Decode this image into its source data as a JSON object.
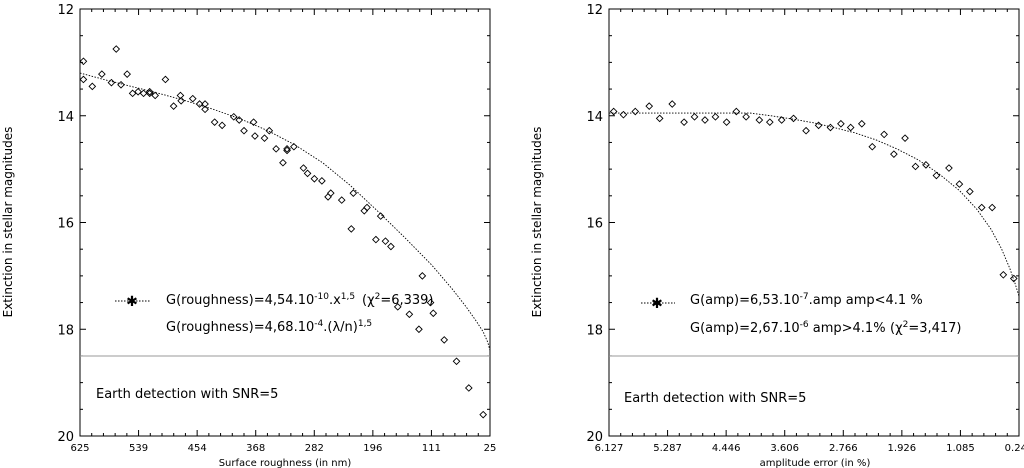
{
  "chart_data": [
    {
      "type": "scatter",
      "title": "",
      "xlabel": "Surface roughness (in nm)",
      "ylabel": "Extinction in stellar magnitudes",
      "xlim": [
        625,
        25
      ],
      "ylim": [
        12,
        20
      ],
      "y_inverted": true,
      "x_reversed": true,
      "x_ticks": [
        "625",
        "539",
        "454",
        "368",
        "282",
        "196",
        "111",
        "25"
      ],
      "y_ticks": [
        "12",
        "14",
        "16",
        "18",
        "20"
      ],
      "reference_line": {
        "y": 18.5,
        "label": "Earth detection with SNR=5"
      },
      "legend": {
        "fit_label": "G(roughness)=4,54.10",
        "fit_exp": "-10",
        "fit_tail": ".x",
        "fit_pow": "1,5",
        "chi_pre": "(χ",
        "chi_sup": "2",
        "chi_post": "=6,339)",
        "second_pre": "G(roughness)=4,68.10",
        "second_exp": "-4",
        "second_tail": ".(λ/n)",
        "second_pow": "1,5"
      },
      "series": [
        {
          "x": [
            620,
            620,
            607,
            593,
            579,
            572,
            565,
            556,
            548,
            540,
            532,
            523,
            523,
            515,
            500,
            488,
            478,
            477,
            460,
            450,
            442,
            442,
            428,
            417,
            400,
            392,
            385,
            371,
            369,
            355,
            348,
            338,
            328,
            322,
            322,
            312,
            298,
            292,
            282,
            271,
            262,
            258,
            242,
            228,
            225,
            209,
            205,
            192,
            185,
            178,
            170,
            160,
            143,
            129,
            124,
            112,
            108,
            92,
            74,
            56,
            35
          ],
          "y": [
            13.32,
            12.98,
            13.45,
            13.22,
            13.38,
            12.75,
            13.42,
            13.22,
            13.58,
            13.55,
            13.58,
            13.55,
            13.58,
            13.62,
            13.32,
            13.82,
            13.62,
            13.72,
            13.68,
            13.78,
            13.88,
            13.78,
            14.12,
            14.18,
            14.02,
            14.08,
            14.28,
            14.12,
            14.38,
            14.42,
            14.28,
            14.62,
            14.88,
            14.62,
            14.65,
            14.58,
            14.98,
            15.08,
            15.18,
            15.22,
            15.52,
            15.45,
            15.58,
            16.12,
            15.45,
            15.78,
            15.72,
            16.32,
            15.88,
            16.35,
            16.45,
            17.58,
            17.72,
            18.0,
            17.0,
            17.5,
            17.7,
            18.2,
            18.6,
            19.1,
            19.6
          ],
          "y_note": "readings"
        }
      ],
      "fit_curve": {
        "x": [
          625,
          590,
          550,
          510,
          470,
          430,
          390,
          350,
          310,
          270,
          230,
          190,
          150,
          110,
          80,
          60,
          45,
          35,
          28,
          25
        ],
        "y": [
          13.2,
          13.32,
          13.45,
          13.58,
          13.72,
          13.88,
          14.06,
          14.28,
          14.55,
          14.88,
          15.3,
          15.78,
          16.28,
          16.8,
          17.25,
          17.58,
          17.85,
          18.05,
          18.25,
          18.4
        ]
      }
    },
    {
      "type": "scatter",
      "title": "",
      "xlabel": "amplitude error (in %)",
      "ylabel": "Extinction in stellar magnitudes",
      "xlim": [
        6.127,
        0.245
      ],
      "ylim": [
        12,
        20
      ],
      "y_inverted": true,
      "x_reversed": true,
      "x_ticks": [
        "6.127",
        "5.287",
        "4.446",
        "3.606",
        "2.766",
        "1.926",
        "1.085",
        "0.245"
      ],
      "y_ticks": [
        "12",
        "14",
        "16",
        "18",
        "20"
      ],
      "reference_line": {
        "y": 18.5,
        "label": "Earth detection with SNR=5"
      },
      "legend": {
        "fit_label": "G(amp)=6,53.10",
        "fit_exp": "-7",
        "fit_tail": ".amp amp<4.1 %",
        "second_pre": "G(amp)=2,67.10",
        "second_exp": "-6",
        "second_tail": " amp>4.1%",
        "chi_pre": "(χ",
        "chi_sup": "2",
        "chi_post": "=3,417)"
      },
      "series": [
        {
          "x": [
            6.06,
            5.92,
            5.75,
            5.55,
            5.4,
            5.22,
            5.05,
            4.9,
            4.75,
            4.6,
            4.44,
            4.3,
            4.16,
            3.97,
            3.82,
            3.65,
            3.48,
            3.3,
            3.12,
            2.95,
            2.8,
            2.66,
            2.5,
            2.35,
            2.18,
            2.04,
            1.88,
            1.73,
            1.58,
            1.43,
            1.25,
            1.1,
            0.95,
            0.78,
            0.63,
            0.47,
            0.32
          ],
          "y": [
            13.92,
            13.98,
            13.92,
            13.82,
            14.05,
            13.78,
            14.12,
            14.02,
            14.08,
            14.02,
            14.12,
            13.92,
            14.02,
            14.08,
            14.12,
            14.08,
            14.05,
            14.28,
            14.18,
            14.22,
            14.15,
            14.22,
            14.15,
            14.58,
            14.35,
            14.72,
            14.42,
            14.95,
            14.92,
            15.12,
            14.98,
            15.28,
            15.42,
            15.72,
            15.72,
            16.98,
            17.05
          ]
        }
      ],
      "fit_curve": {
        "x": [
          6.127,
          5.5,
          5.0,
          4.6,
          4.4,
          4.1,
          3.8,
          3.5,
          3.2,
          2.9,
          2.6,
          2.3,
          2.0,
          1.7,
          1.4,
          1.1,
          0.85,
          0.65,
          0.5,
          0.38,
          0.3,
          0.245
        ],
        "y": [
          13.95,
          13.95,
          13.95,
          13.95,
          13.95,
          13.95,
          14.0,
          14.06,
          14.13,
          14.22,
          14.32,
          14.45,
          14.62,
          14.82,
          15.08,
          15.4,
          15.75,
          16.12,
          16.48,
          16.85,
          17.15,
          17.38
        ]
      }
    }
  ]
}
